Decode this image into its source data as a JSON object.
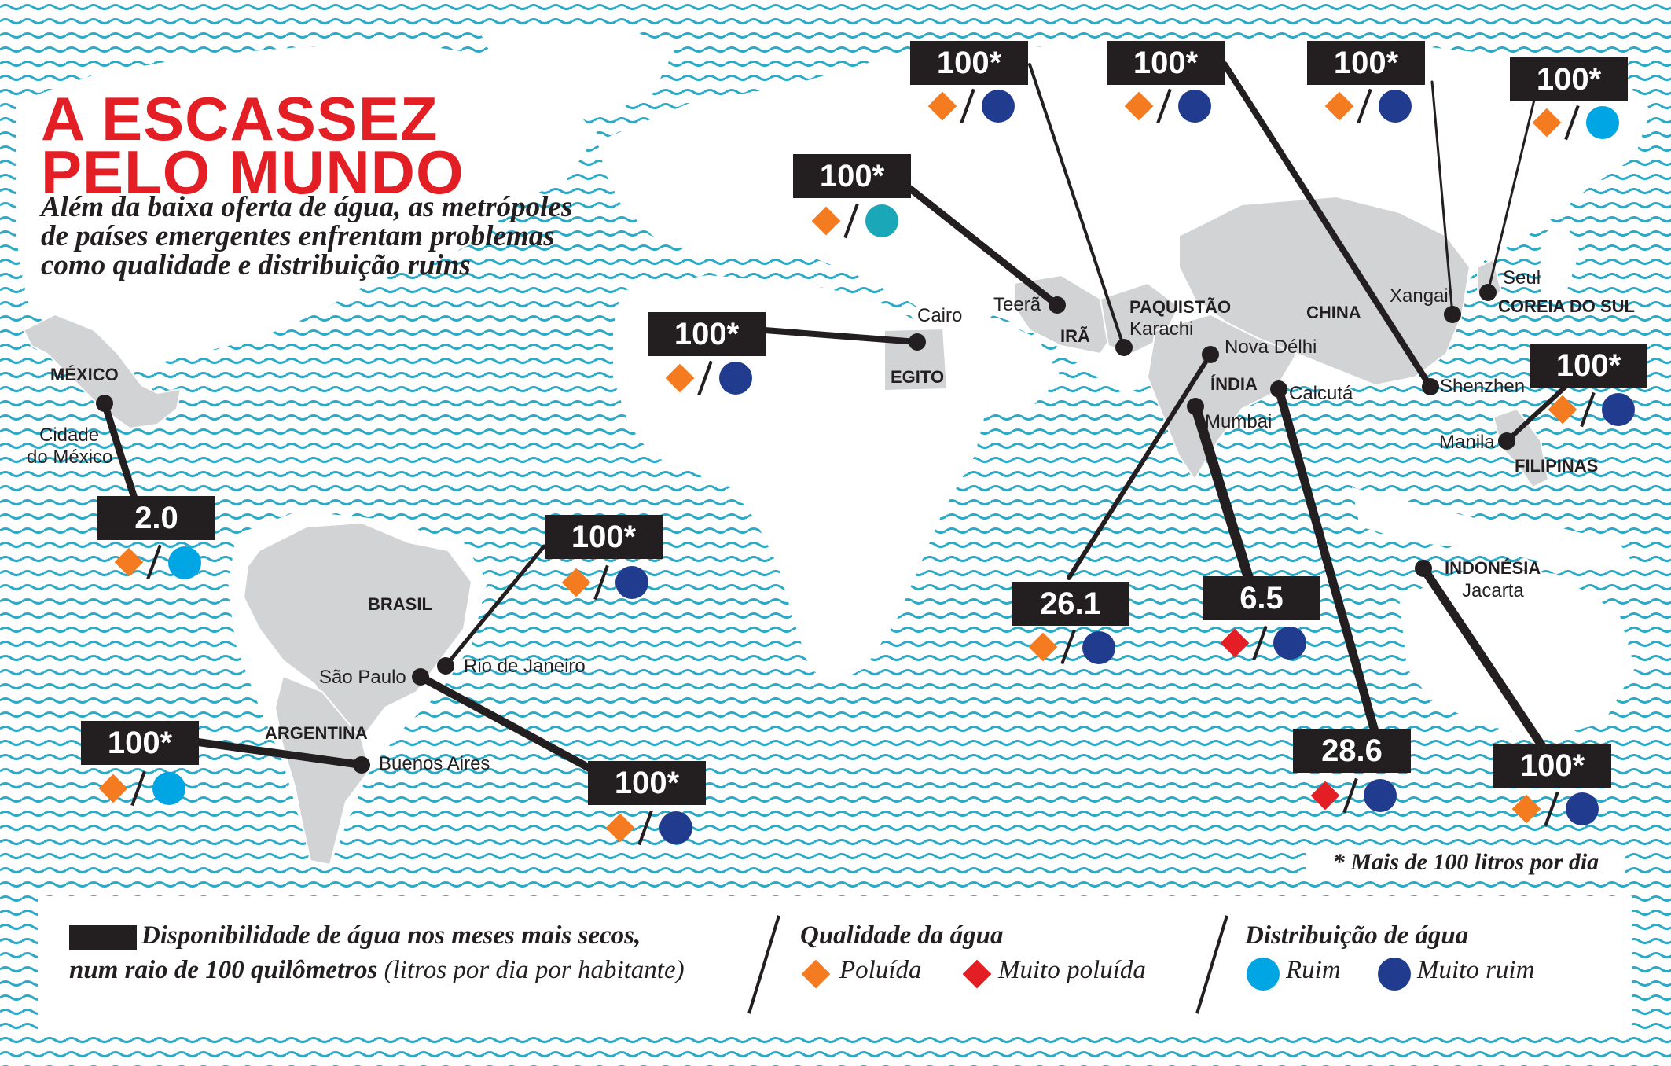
{
  "title": {
    "line1": "A ESCASSEZ",
    "line2": "PELO MUNDO"
  },
  "subtitle": {
    "line1": "Além da baixa oferta de água, as metrópoles",
    "line2": "de países emergentes enfrentam problemas",
    "line3": "como qualidade e distribuição ruins"
  },
  "colors": {
    "water_waves": "#2aaac7",
    "land": "#d1d3d4",
    "highlight_land": "#c3c5c7",
    "label_box": "#231f20",
    "polluted": "#f47b20",
    "very_polluted": "#e31e24",
    "poor": "#00a6e4",
    "very_poor": "#213c8e",
    "teal_poor": "#1aa8b8"
  },
  "countries": [
    "MÉXICO",
    "BRASIL",
    "ARGENTINA",
    "EGITO",
    "IRÃ",
    "PAQUISTÃO",
    "ÍNDIA",
    "CHINA",
    "COREIA DO SUL",
    "FILIPINAS",
    "INDONÉSIA"
  ],
  "cities": {
    "cidade_mexico_1": "Cidade",
    "cidade_mexico_2": "do México",
    "sao_paulo": "São Paulo",
    "rio": "Rio de Janeiro",
    "buenos_aires": "Buenos Aires",
    "cairo": "Cairo",
    "teera": "Teerã",
    "karachi": "Karachi",
    "nova_delhi": "Nova Délhi",
    "mumbai": "Mumbai",
    "calcuta": "Calcutá",
    "xangai": "Xangai",
    "seul": "Seul",
    "shenzhen": "Shenzhen",
    "manila": "Manila",
    "jacarta": "Jacarta"
  },
  "markers": [
    {
      "city": "Cidade do México",
      "value": "2.0",
      "quality": "polluted",
      "distribution": "poor"
    },
    {
      "city": "Rio de Janeiro",
      "value": "100*",
      "quality": "polluted",
      "distribution": "very_poor"
    },
    {
      "city": "São Paulo",
      "value": "100*",
      "quality": "polluted",
      "distribution": "very_poor"
    },
    {
      "city": "Buenos Aires",
      "value": "100*",
      "quality": "polluted",
      "distribution": "poor"
    },
    {
      "city": "Cairo",
      "value": "100*",
      "quality": "polluted",
      "distribution": "very_poor"
    },
    {
      "city": "Teerã",
      "value": "100*",
      "quality": "polluted",
      "distribution": "teal_poor"
    },
    {
      "city": "Karachi",
      "value": "100*",
      "quality": "polluted",
      "distribution": "very_poor"
    },
    {
      "city": "Nova Délhi",
      "value": "26.1",
      "quality": "polluted",
      "distribution": "very_poor"
    },
    {
      "city": "Mumbai",
      "value": "6.5",
      "quality": "very_polluted",
      "distribution": "very_poor"
    },
    {
      "city": "Calcutá",
      "value": "28.6",
      "quality": "very_polluted",
      "distribution": "very_poor"
    },
    {
      "city": "Shenzhen",
      "value": "100*",
      "quality": "polluted",
      "distribution": "very_poor"
    },
    {
      "city": "Xangai",
      "value": "100*",
      "quality": "polluted",
      "distribution": "very_poor"
    },
    {
      "city": "Seul",
      "value": "100*",
      "quality": "polluted",
      "distribution": "poor"
    },
    {
      "city": "Manila",
      "value": "100*",
      "quality": "polluted",
      "distribution": "very_poor"
    },
    {
      "city": "Jacarta",
      "value": "100*",
      "quality": "polluted",
      "distribution": "very_poor"
    }
  ],
  "note": "* Mais de 100 litros por dia",
  "legend": {
    "availability_line1": "Disponibilidade de água nos meses mais secos,",
    "availability_line2_bold": "num raio de 100 quilômetros",
    "availability_line2_unit": "(litros por dia por habitante)",
    "quality_title": "Qualidade da água",
    "quality_polluted": "Poluída",
    "quality_very_polluted": "Muito poluída",
    "distribution_title": "Distribuição de água",
    "distribution_poor": "Ruim",
    "distribution_very_poor": "Muito ruim"
  }
}
